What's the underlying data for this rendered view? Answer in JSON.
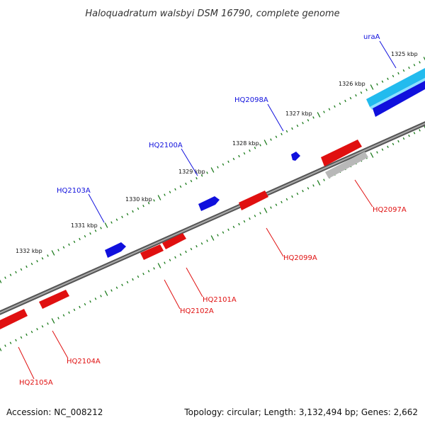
{
  "title": "Haloquadratum walsbyi DSM 16790, complete genome",
  "footer": {
    "accession": "Accession: NC_008212",
    "summary": "Topology: circular; Length: 3,132,494 bp; Genes: 2,662"
  },
  "colors": {
    "backbone": "#777777",
    "tick": "#1a7a1a",
    "forward": "#1010dd",
    "reverse": "#e01010",
    "rna": "#22bbee",
    "pseudo": "#b8b8b8"
  },
  "scale": {
    "labels": [
      "1325 kbp",
      "1326 kbp",
      "1327 kbp",
      "1328 kbp",
      "1329 kbp",
      "1330 kbp",
      "1331 kbp",
      "1332 kbp"
    ]
  },
  "genes": [
    {
      "label": "uraA",
      "strand": "forward"
    },
    {
      "label": "HQ2098A",
      "strand": "forward"
    },
    {
      "label": "HQ2100A",
      "strand": "forward"
    },
    {
      "label": "HQ2103A",
      "strand": "forward"
    },
    {
      "label": "HQ2097A",
      "strand": "reverse"
    },
    {
      "label": "HQ2099A",
      "strand": "reverse"
    },
    {
      "label": "HQ2101A",
      "strand": "reverse"
    },
    {
      "label": "HQ2102A",
      "strand": "reverse"
    },
    {
      "label": "HQ2104A",
      "strand": "reverse"
    },
    {
      "label": "HQ2105A",
      "strand": "reverse"
    }
  ]
}
